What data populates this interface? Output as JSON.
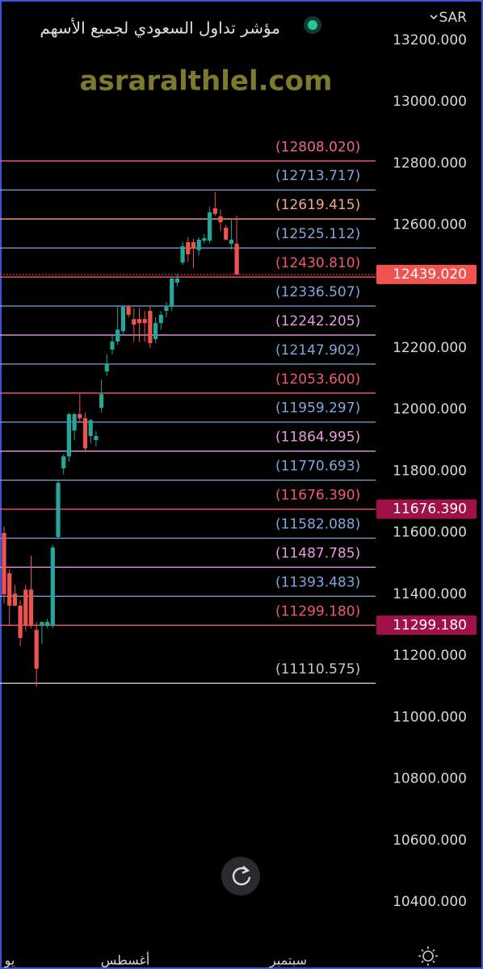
{
  "header": {
    "currency": "SAR",
    "title": "مؤشر تداول السعودي لجميع الأسهم",
    "watermark": "asraralthlel.com"
  },
  "chart_data": {
    "type": "candlestick",
    "up_color": "#26a69a",
    "down_color": "#ef5350",
    "open": [
      11599,
      11468,
      11402,
      11363,
      11415,
      11415,
      11284,
      11297,
      11297,
      11297,
      11586,
      11809,
      11848,
      11932,
      11985,
      11972,
      11914,
      11901,
      12006,
      12124,
      12195,
      12221,
      12255,
      12334,
      12294,
      12294,
      12294,
      12321,
      12229,
      12281,
      12321,
      12334,
      12413,
      12478,
      12544,
      12544,
      12518,
      12549,
      12549,
      12654,
      12628,
      12591,
      12539,
      12539
    ],
    "high": [
      11620,
      11481,
      11430,
      11380,
      11430,
      11525,
      11310,
      11310,
      11320,
      11560,
      11770,
      11855,
      11990,
      11990,
      12050,
      11990,
      11970,
      11930,
      12098,
      12180,
      12240,
      12334,
      12334,
      12340,
      12330,
      12330,
      12320,
      12334,
      12300,
      12320,
      12350,
      12430,
      12440,
      12545,
      12560,
      12555,
      12560,
      12570,
      12660,
      12707,
      12650,
      12600,
      12620,
      12630
    ],
    "low": [
      11370,
      11300,
      11360,
      11232,
      11280,
      11290,
      11100,
      11239,
      11290,
      11290,
      11580,
      11790,
      11830,
      11900,
      11960,
      11861,
      11890,
      11880,
      11990,
      12110,
      12180,
      12210,
      12240,
      12300,
      12220,
      12220,
      12220,
      12200,
      12216,
      12260,
      12300,
      12320,
      12400,
      12470,
      12480,
      12460,
      12500,
      12540,
      12540,
      12630,
      12580,
      12550,
      12520,
      12439
    ],
    "close": [
      11400,
      11363,
      11363,
      11258,
      11297,
      11297,
      11158,
      11310,
      11310,
      11552,
      11762,
      11848,
      11985,
      11985,
      11972,
      11875,
      11966,
      11914,
      12050,
      12150,
      12221,
      12260,
      12334,
      12308,
      12276,
      12281,
      12281,
      12216,
      12281,
      12308,
      12334,
      12426,
      12426,
      12531,
      12505,
      12523,
      12552,
      12557,
      12641,
      12636,
      12609,
      12552,
      12552,
      12439
    ],
    "x_labels": [
      "يو",
      "أغسطس",
      "سبتمبر"
    ],
    "ylim": [
      10274,
      13331
    ],
    "yticks": [
      {
        "value": 13200,
        "label": "13200.000"
      },
      {
        "value": 13000,
        "label": "13000.000"
      },
      {
        "value": 12800,
        "label": "12800.000"
      },
      {
        "value": 12600,
        "label": "12600.000"
      },
      {
        "value": 12200,
        "label": "12200.000"
      },
      {
        "value": 12000,
        "label": "12000.000"
      },
      {
        "value": 11800,
        "label": "11800.000"
      },
      {
        "value": 11600,
        "label": "11600.000"
      },
      {
        "value": 11400,
        "label": "11400.000"
      },
      {
        "value": 11200,
        "label": "11200.000"
      },
      {
        "value": 11000,
        "label": "11000.000"
      },
      {
        "value": 10800,
        "label": "10800.000"
      },
      {
        "value": 10600,
        "label": "10600.000"
      },
      {
        "value": 10400,
        "label": "10400.000"
      }
    ],
    "levels": [
      {
        "value": 12808.02,
        "label": "(12808.020)",
        "color": "#f06292"
      },
      {
        "value": 12713.717,
        "label": "(12713.717)",
        "color": "#7fa7d9"
      },
      {
        "value": 12619.415,
        "label": "(12619.415)",
        "color": "#f4a58a"
      },
      {
        "value": 12525.112,
        "label": "(12525.112)",
        "color": "#7fa7d9"
      },
      {
        "value": 12430.81,
        "label": "(12430.810)",
        "color": "#f05a6e"
      },
      {
        "value": 12336.507,
        "label": "(12336.507)",
        "color": "#7fa7d9"
      },
      {
        "value": 12242.205,
        "label": "(12242.205)",
        "color": "#e59be0"
      },
      {
        "value": 12147.902,
        "label": "(12147.902)",
        "color": "#7fa7d9"
      },
      {
        "value": 12053.6,
        "label": "(12053.600)",
        "color": "#f05a6e"
      },
      {
        "value": 11959.297,
        "label": "(11959.297)",
        "color": "#7fa7d9"
      },
      {
        "value": 11864.995,
        "label": "(11864.995)",
        "color": "#e59be0"
      },
      {
        "value": 11770.693,
        "label": "(11770.693)",
        "color": "#7fa7d9"
      },
      {
        "value": 11676.39,
        "label": "(11676.390)",
        "color": "#f05a6e"
      },
      {
        "value": 11582.088,
        "label": "(11582.088)",
        "color": "#7fa7d9"
      },
      {
        "value": 11487.785,
        "label": "(11487.785)",
        "color": "#e59be0"
      },
      {
        "value": 11393.483,
        "label": "(11393.483)",
        "color": "#7fa7d9"
      },
      {
        "value": 11299.18,
        "label": "(11299.180)",
        "color": "#f05a6e"
      },
      {
        "value": 11110.575,
        "label": "(11110.575)",
        "color": "#c8c8c8"
      }
    ],
    "price_tags": [
      {
        "value": 12439.02,
        "label": "12439.020",
        "color": "#f05350"
      },
      {
        "value": 11676.39,
        "label": "11676.390",
        "color": "#a0114a"
      },
      {
        "value": 11299.18,
        "label": "11299.180",
        "color": "#a0114a"
      }
    ]
  }
}
